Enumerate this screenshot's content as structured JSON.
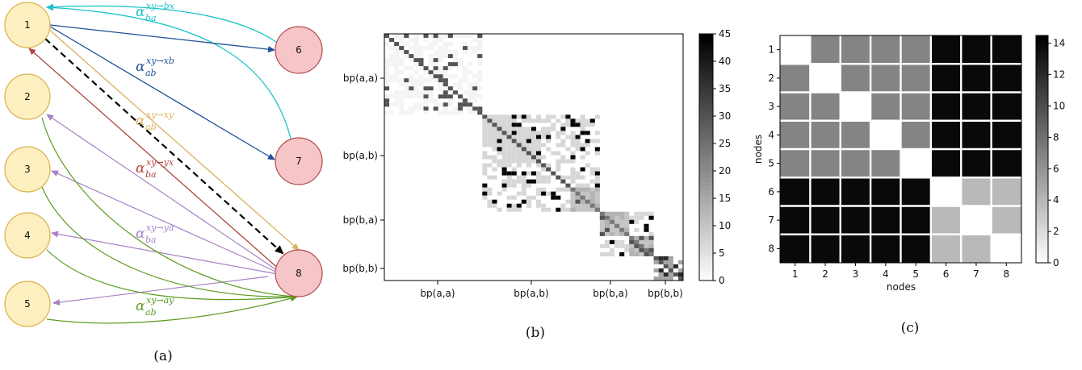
{
  "panel_a": {
    "caption": "(a)",
    "nodes": [
      {
        "id": "1",
        "group": "left"
      },
      {
        "id": "2",
        "group": "left"
      },
      {
        "id": "3",
        "group": "left"
      },
      {
        "id": "4",
        "group": "left"
      },
      {
        "id": "5",
        "group": "left"
      },
      {
        "id": "6",
        "group": "right"
      },
      {
        "id": "7",
        "group": "right"
      },
      {
        "id": "8",
        "group": "right"
      }
    ],
    "colors": {
      "left_fill": "#fdefc0",
      "left_stroke": "#d8b24a",
      "right_fill": "#f6c5c7",
      "right_stroke": "#b04a4e",
      "cyan": "#19c3c9",
      "blue": "#1f4e96",
      "gold": "#d9b25b",
      "red": "#b0453f",
      "purple": "#a882c4",
      "green": "#5a9a1d",
      "dashed": "#000000"
    },
    "labels": [
      {
        "key": "bx",
        "sub": "ba",
        "sup": "xy→bx",
        "color": "#19c3c9"
      },
      {
        "key": "xb",
        "sub": "ab",
        "sup": "xy→xb",
        "color": "#1f4e96"
      },
      {
        "key": "xy",
        "sub": "ab",
        "sup": "xy→xy",
        "color": "#d9b25b"
      },
      {
        "key": "yx",
        "sub": "ba",
        "sup": "xy→yx",
        "color": "#b0453f"
      },
      {
        "key": "ya",
        "sub": "ba",
        "sup": "xy→ya",
        "color": "#a882c4"
      },
      {
        "key": "ay",
        "sub": "ab",
        "sup": "xy→ay",
        "color": "#5a9a1d"
      }
    ],
    "alpha_symbol": "α"
  },
  "panel_b": {
    "caption": "(b)",
    "y_tick_labels": [
      "bp(a,a)",
      "bp(a,b)",
      "bp(b,a)",
      "bp(b,b)"
    ],
    "x_tick_labels": [
      "bp(a,a)",
      "bp(a,b)",
      "bp(b,a)",
      "bp(b,b)"
    ],
    "colorbar_ticks": [
      "0",
      "5",
      "10",
      "15",
      "20",
      "25",
      "30",
      "35",
      "40",
      "45"
    ],
    "colorbar_range": [
      0,
      45
    ]
  },
  "panel_c": {
    "caption": "(c)",
    "x_tick_labels": [
      "1",
      "2",
      "3",
      "4",
      "5",
      "6",
      "7",
      "8"
    ],
    "y_tick_labels": [
      "1",
      "2",
      "3",
      "4",
      "5",
      "6",
      "7",
      "8"
    ],
    "xlabel": "nodes",
    "ylabel": "nodes",
    "colorbar_ticks": [
      "0",
      "2",
      "4",
      "6",
      "8",
      "10",
      "12",
      "14"
    ],
    "colorbar_range": [
      0,
      14.5
    ]
  },
  "chart_data": {
    "type": "heatmap",
    "xlabel": "nodes",
    "ylabel": "nodes",
    "x": [
      "1",
      "2",
      "3",
      "4",
      "5",
      "6",
      "7",
      "8"
    ],
    "y": [
      "1",
      "2",
      "3",
      "4",
      "5",
      "6",
      "7",
      "8"
    ],
    "values": [
      [
        0,
        7,
        7,
        7,
        7,
        14,
        14,
        14
      ],
      [
        7,
        0,
        7,
        7,
        7,
        14,
        14,
        14
      ],
      [
        7,
        7,
        0,
        7,
        7,
        14,
        14,
        14
      ],
      [
        7,
        7,
        7,
        0,
        7,
        14,
        14,
        14
      ],
      [
        7,
        7,
        7,
        7,
        0,
        14,
        14,
        14
      ],
      [
        14,
        14,
        14,
        14,
        14,
        0,
        4,
        4
      ],
      [
        14,
        14,
        14,
        14,
        14,
        4,
        0,
        4
      ],
      [
        14,
        14,
        14,
        14,
        14,
        4,
        4,
        0
      ]
    ],
    "zlim": [
      0,
      14.5
    ]
  }
}
